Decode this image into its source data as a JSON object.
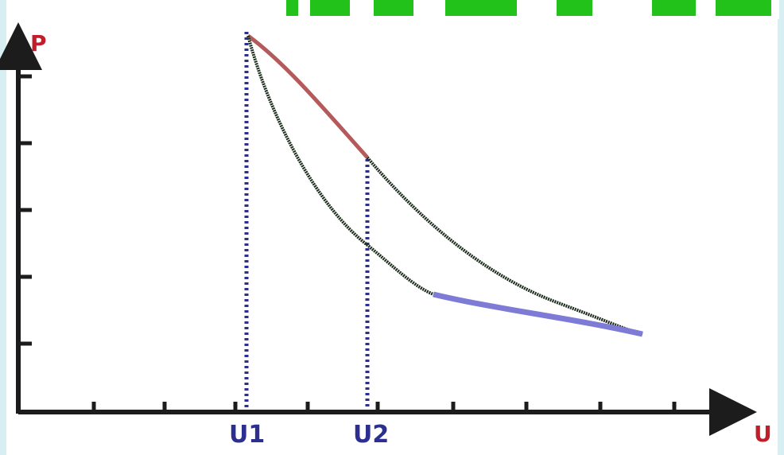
{
  "header": {
    "text": ""
  },
  "axes": {
    "y_label": "P",
    "x_label": "U"
  },
  "markers": {
    "v1_label": "U1",
    "v2_label": "U2"
  },
  "colors": {
    "background": "#d7eef3",
    "paper": "#ffffff",
    "axis": "#1c1c1c",
    "header_green": "#22c21a",
    "curve_dark": "#1f2f1f",
    "curve_red_segment": "#b45a5a",
    "curve_blue_segment": "#7d7bd6",
    "marker_blue": "#2c2f8f",
    "axis_label_red": "#c21d2a"
  }
}
